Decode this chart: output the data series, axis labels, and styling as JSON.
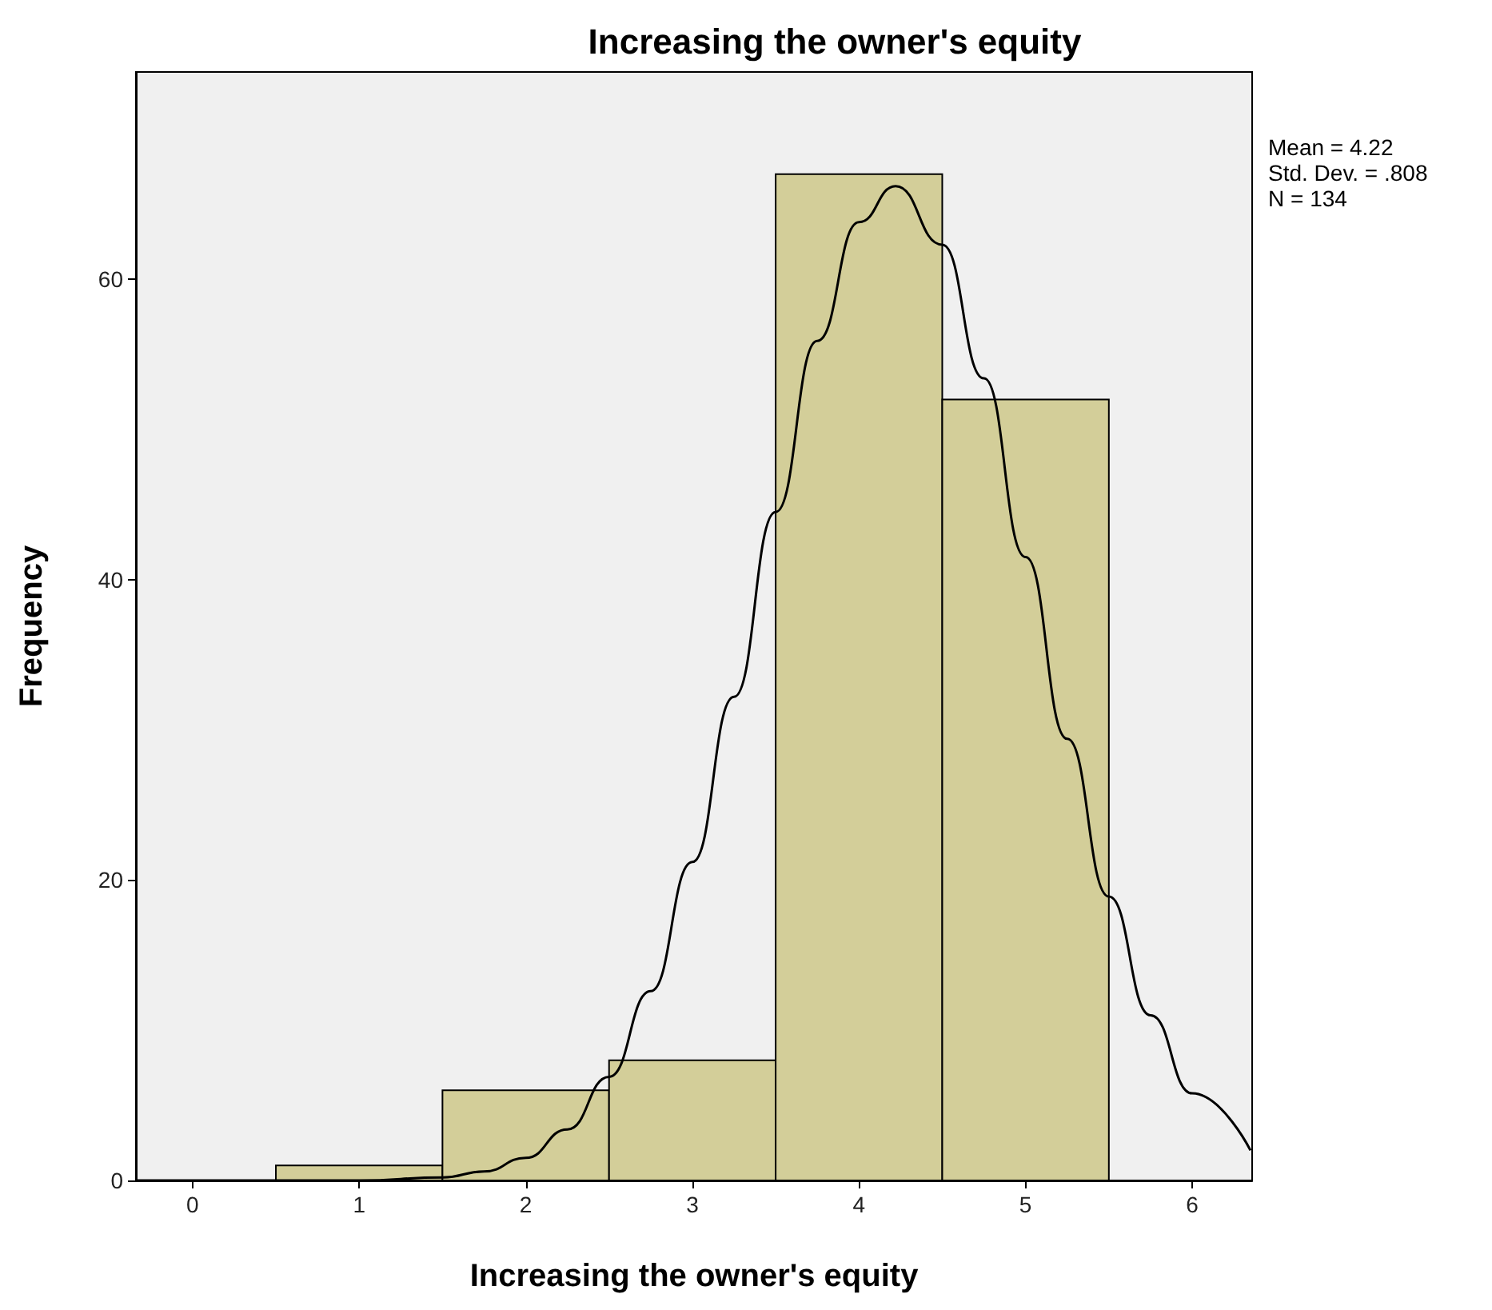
{
  "chart_data": {
    "type": "histogram",
    "title": "Increasing the owner's equity",
    "xlabel": "Increasing the owner's equity",
    "ylabel": "Frequency",
    "annotations": [
      "Mean = 4.22",
      "Std. Dev. = .808",
      "N = 134"
    ],
    "bins": [
      0.5,
      1.5,
      2.5,
      3.5,
      4.5,
      5.5
    ],
    "values": [
      1,
      6,
      8,
      67,
      52
    ],
    "color": "#d3ce99",
    "series": [
      {
        "type": "line",
        "color": "#000000",
        "x": [
          -0.34,
          0.5,
          1,
          1.5,
          1.75,
          2,
          2.25,
          2.5,
          2.75,
          3,
          3.25,
          3.5,
          3.75,
          4,
          4.22,
          4.5,
          4.75,
          5,
          5.25,
          5.5,
          5.75,
          6,
          6.35
        ],
        "values": [
          0,
          0,
          0,
          0.2,
          0.6,
          1.5,
          3.4,
          6.9,
          12.6,
          21.2,
          32.2,
          44.5,
          55.9,
          63.8,
          66.2,
          62.3,
          53.4,
          41.5,
          29.4,
          18.9,
          11,
          5.8,
          2
        ]
      }
    ],
    "xlim": [
      -0.34,
      6.36
    ],
    "ylim": [
      0,
      73.8
    ],
    "xticks": [
      0,
      1,
      2,
      3,
      4,
      5,
      6
    ],
    "yticks": [
      0,
      20,
      40,
      60
    ],
    "grid": false
  }
}
